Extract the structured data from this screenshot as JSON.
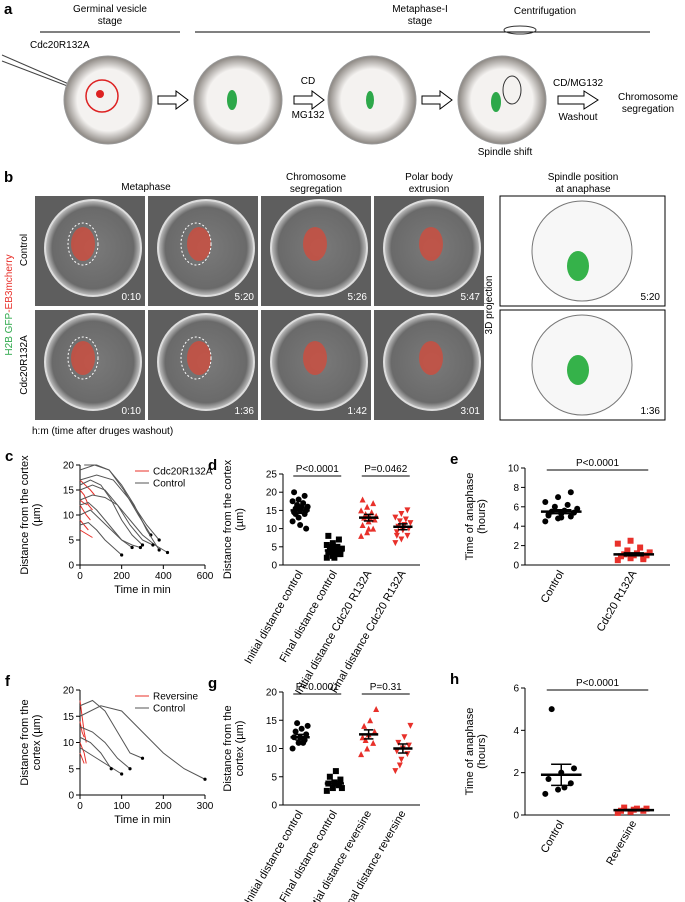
{
  "figure": {
    "panel_a": {
      "label": "a",
      "stage1": [
        "Germinal vesicle",
        "stage"
      ],
      "stage2": [
        "Metaphase-I",
        "stage"
      ],
      "injection": "Cdc20R132A",
      "step1": [
        "CD",
        "MG132"
      ],
      "centrifugation": "Centrifugation",
      "spindle_shift": "Spindle shift",
      "step2": [
        "CD/MG132",
        "Washout"
      ],
      "result": [
        "Chromosome",
        "segregation"
      ]
    },
    "panel_b": {
      "label": "b",
      "col1": "Metaphase",
      "col2": [
        "Chromosome",
        "segregation"
      ],
      "col3": [
        "Polar body",
        "extrusion"
      ],
      "col4": [
        "Spindle position",
        "at anaphase"
      ],
      "row1": "Control",
      "row2": "Cdc20R132A",
      "channel_green": "H2B GFP",
      "channel_red": "-EB3mcherry",
      "projection": "3D projection",
      "times_row1": [
        "0:10",
        "5:20",
        "5:26",
        "5:47",
        "5:20"
      ],
      "times_row2": [
        "0:10",
        "1:36",
        "1:42",
        "3:01",
        "1:36"
      ],
      "caption": "h:m (time after druges washout)"
    }
  },
  "chart_data": [
    {
      "type": "line",
      "panel": "c",
      "xlabel": "Time in min",
      "ylabel": [
        "Distance from the cortex",
        "(µm)"
      ],
      "xlim": [
        0,
        600
      ],
      "xticks": [
        0,
        200,
        400,
        600
      ],
      "ylim": [
        0,
        20
      ],
      "yticks": [
        0,
        5,
        10,
        15,
        20
      ],
      "series": [
        {
          "name": "Cdc20R132A",
          "color": "#e8302a",
          "end_marker": false,
          "traces": [
            {
              "x": [
                0,
                20,
                40,
                60
              ],
              "y": [
                15,
                14,
                12,
                11
              ]
            },
            {
              "x": [
                0,
                15,
                30,
                50
              ],
              "y": [
                12,
                11,
                10,
                9
              ]
            },
            {
              "x": [
                0,
                20,
                40
              ],
              "y": [
                9,
                8,
                7
              ]
            },
            {
              "x": [
                0,
                25,
                50,
                70
              ],
              "y": [
                17,
                16,
                15,
                14
              ]
            },
            {
              "x": [
                0,
                20,
                40,
                60
              ],
              "y": [
                7,
                6.5,
                6,
                5.5
              ]
            },
            {
              "x": [
                0,
                15,
                35
              ],
              "y": [
                13,
                12.5,
                12
              ]
            }
          ]
        },
        {
          "name": "Control",
          "color": "#555555",
          "end_marker": true,
          "traces": [
            {
              "x": [
                0,
                60,
                120,
                180,
                240,
                300,
                360,
                420
              ],
              "y": [
                13,
                14,
                13.5,
                12,
                9,
                6,
                4,
                2.5
              ]
            },
            {
              "x": [
                0,
                50,
                100,
                150,
                200,
                250,
                300
              ],
              "y": [
                16,
                17,
                16,
                13,
                9,
                6,
                4
              ]
            },
            {
              "x": [
                0,
                40,
                80,
                120,
                160,
                200,
                250,
                290
              ],
              "y": [
                12,
                12.5,
                11,
                9,
                7,
                5,
                4,
                3.5
              ]
            },
            {
              "x": [
                0,
                70,
                140,
                210,
                280,
                340
              ],
              "y": [
                19,
                20,
                19,
                15,
                10,
                6
              ]
            },
            {
              "x": [
                0,
                50,
                100,
                150,
                200,
                250
              ],
              "y": [
                10,
                11,
                9,
                7,
                5,
                3.5
              ]
            },
            {
              "x": [
                0,
                60,
                120,
                180,
                240,
                300,
                350
              ],
              "y": [
                15,
                16,
                15,
                12,
                8,
                5,
                4
              ]
            },
            {
              "x": [
                0,
                80,
                160,
                240,
                320,
                380
              ],
              "y": [
                17,
                18,
                17,
                13,
                8,
                5
              ]
            },
            {
              "x": [
                0,
                40,
                80,
                120,
                160,
                200
              ],
              "y": [
                8,
                8.5,
                7,
                5,
                3.5,
                2
              ]
            },
            {
              "x": [
                20,
                80,
                140,
                200,
                260,
                320,
                380
              ],
              "y": [
                20,
                20,
                19,
                16,
                12,
                7,
                3
              ]
            }
          ]
        }
      ]
    },
    {
      "type": "dot",
      "panel": "d",
      "ylabel": [
        "Distance from the cortex",
        "(µm)"
      ],
      "ylim": [
        0,
        25
      ],
      "yticks": [
        0,
        5,
        10,
        15,
        20,
        25
      ],
      "categories": [
        "Initial distance control",
        "Final distance control",
        "Initial distance Cdc20 R132A",
        "Final distance Cdc20 R132A"
      ],
      "colors": [
        "#000000",
        "#000000",
        "#e8302a",
        "#e8302a"
      ],
      "markers": [
        "circle",
        "square",
        "triangle-up",
        "triangle-down"
      ],
      "points": [
        [
          12,
          13,
          14,
          14.5,
          15,
          15,
          15.5,
          16,
          16,
          16.5,
          17,
          17.5,
          18,
          19,
          20,
          11,
          10,
          14
        ],
        [
          2,
          2.5,
          3,
          3.5,
          3.5,
          4,
          4,
          4.5,
          4.5,
          5,
          5,
          5.5,
          6,
          7,
          8,
          2,
          3
        ],
        [
          8,
          9,
          10,
          11,
          12,
          12.5,
          13,
          13,
          13.5,
          14,
          14.5,
          15,
          16,
          17,
          18,
          10
        ],
        [
          6,
          7,
          8,
          9,
          9.5,
          10,
          10.5,
          11,
          11.5,
          12,
          12.5,
          13,
          14,
          15,
          8
        ]
      ],
      "mean": [
        15,
        4,
        13,
        10.5
      ],
      "sem": [
        0.8,
        0.6,
        0.9,
        0.8
      ],
      "annotations": [
        "P<0.0001",
        "P=0.0462"
      ]
    },
    {
      "type": "dot",
      "panel": "e",
      "ylabel": [
        "Time of anaphase",
        "(hours)"
      ],
      "ylim": [
        0,
        10
      ],
      "yticks": [
        0,
        2,
        4,
        6,
        8,
        10
      ],
      "categories": [
        "Control",
        "Cdc20 R132A"
      ],
      "colors": [
        "#000000",
        "#e8302a"
      ],
      "markers": [
        "circle",
        "square"
      ],
      "points": [
        [
          4.5,
          4.8,
          5,
          5.2,
          5.3,
          5.4,
          5.5,
          5.6,
          5.8,
          6,
          6.2,
          6.5,
          7,
          7.5,
          5.1,
          4.9
        ],
        [
          0.5,
          0.7,
          0.8,
          0.9,
          1,
          1,
          1.1,
          1.2,
          1.3,
          1.5,
          1.8,
          2.2,
          2.5,
          0.6
        ]
      ],
      "mean": [
        5.5,
        1.1
      ],
      "sem": [
        0.2,
        0.15
      ],
      "annotations": [
        "P<0.0001"
      ]
    },
    {
      "type": "line",
      "panel": "f",
      "xlabel": "Time in min",
      "ylabel": [
        "Distance from the",
        "cortex (µm)"
      ],
      "xlim": [
        0,
        300
      ],
      "xticks": [
        0,
        100,
        200,
        300
      ],
      "ylim": [
        0,
        20
      ],
      "yticks": [
        0,
        5,
        10,
        15,
        20
      ],
      "series": [
        {
          "name": "Reversine",
          "color": "#e8302a",
          "end_marker": false,
          "traces": [
            {
              "x": [
                0,
                5,
                10,
                15
              ],
              "y": [
                18,
                15,
                12,
                10
              ]
            },
            {
              "x": [
                0,
                5,
                10
              ],
              "y": [
                14,
                12,
                11
              ]
            },
            {
              "x": [
                0,
                5,
                10,
                15
              ],
              "y": [
                10,
                9,
                8,
                6
              ]
            },
            {
              "x": [
                0,
                5,
                10
              ],
              "y": [
                8,
                7,
                6
              ]
            }
          ]
        },
        {
          "name": "Control",
          "color": "#555555",
          "end_marker": true,
          "traces": [
            {
              "x": [
                0,
                30,
                60,
                90,
                120,
                150
              ],
              "y": [
                17,
                18,
                16,
                12,
                8,
                7
              ]
            },
            {
              "x": [
                0,
                30,
                60,
                90,
                120
              ],
              "y": [
                13,
                12,
                10,
                7,
                5
              ]
            },
            {
              "x": [
                0,
                20,
                40,
                60,
                80,
                100
              ],
              "y": [
                9,
                8,
                7,
                6,
                5,
                4
              ]
            },
            {
              "x": [
                0,
                50,
                100,
                150,
                200,
                250,
                300
              ],
              "y": [
                15,
                17,
                16,
                12,
                8,
                5,
                3
              ]
            },
            {
              "x": [
                0,
                25,
                50,
                75
              ],
              "y": [
                11,
                10,
                8,
                5
              ]
            }
          ]
        }
      ]
    },
    {
      "type": "dot",
      "panel": "g",
      "ylabel": [
        "Distance from the",
        "cortex (µm)"
      ],
      "ylim": [
        0,
        20
      ],
      "yticks": [
        0,
        5,
        10,
        15,
        20
      ],
      "categories": [
        "Initial distance control",
        "Final distance control",
        "Initial distance reversine",
        "Final distance reversine"
      ],
      "colors": [
        "#000000",
        "#000000",
        "#e8302a",
        "#e8302a"
      ],
      "markers": [
        "circle",
        "square",
        "triangle-up",
        "triangle-down"
      ],
      "points": [
        [
          10,
          11,
          11.5,
          12,
          12,
          12.5,
          13,
          13.5,
          14,
          14.5,
          11
        ],
        [
          2.5,
          3,
          3.5,
          3.8,
          4,
          4.5,
          5,
          6,
          3
        ],
        [
          9,
          10,
          11,
          12,
          12.5,
          13,
          14,
          15,
          17,
          11.5
        ],
        [
          6,
          8,
          9,
          9.5,
          10,
          10.5,
          11,
          12,
          14,
          7
        ]
      ],
      "mean": [
        12,
        3.8,
        12.5,
        10
      ],
      "sem": [
        0.5,
        0.4,
        0.8,
        0.8
      ],
      "annotations": [
        "P<0.0001",
        "P=0.31"
      ]
    },
    {
      "type": "dot",
      "panel": "h",
      "ylabel": [
        "Time of anaphase",
        "(hours)"
      ],
      "ylim": [
        0,
        6
      ],
      "yticks": [
        0,
        2,
        4,
        6
      ],
      "categories": [
        "Control",
        "Reversine"
      ],
      "colors": [
        "#000000",
        "#e8302a"
      ],
      "markers": [
        "circle",
        "square"
      ],
      "points": [
        [
          1,
          1.2,
          1.5,
          1.7,
          2,
          2.2,
          5,
          1.3
        ],
        [
          0.1,
          0.15,
          0.2,
          0.2,
          0.25,
          0.3,
          0.35,
          0.3
        ]
      ],
      "mean": [
        1.9,
        0.23
      ],
      "sem": [
        0.5,
        0.03
      ],
      "annotations": [
        "P<0.0001"
      ]
    }
  ]
}
